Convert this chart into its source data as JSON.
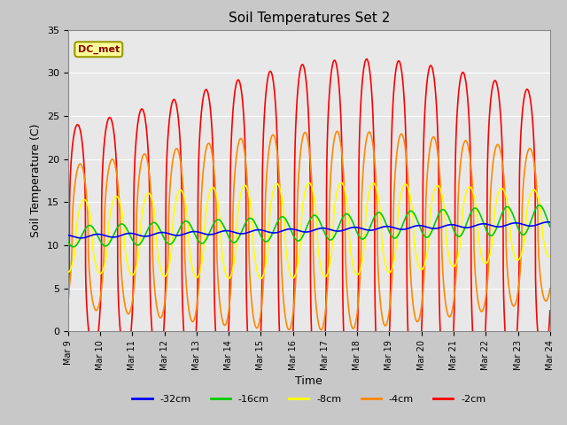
{
  "title": "Soil Temperatures Set 2",
  "xlabel": "Time",
  "ylabel": "Soil Temperature (C)",
  "ylim": [
    0,
    35
  ],
  "xlim": [
    0,
    360
  ],
  "fig_bg": "#c8c8c8",
  "plot_bg": "#e8e8e8",
  "grid_color": "white",
  "annotation_text": "DC_met",
  "annotation_box_color": "#ffff99",
  "annotation_box_edge": "#999900",
  "x_tick_labels": [
    "Mar 9",
    "Mar 10",
    "Mar 11",
    "Mar 12",
    "Mar 13",
    "Mar 14",
    "Mar 15",
    "Mar 16",
    "Mar 17",
    "Mar 18",
    "Mar 19",
    "Mar 20",
    "Mar 21",
    "Mar 22",
    "Mar 23",
    "Mar 24"
  ],
  "x_tick_positions": [
    0,
    24,
    48,
    72,
    96,
    120,
    144,
    168,
    192,
    216,
    240,
    264,
    288,
    312,
    336,
    360
  ],
  "series": {
    "-32cm": {
      "color": "#0000ff",
      "linewidth": 1.2
    },
    "-16cm": {
      "color": "#00cc00",
      "linewidth": 1.2
    },
    "-8cm": {
      "color": "#ffff00",
      "linewidth": 1.2
    },
    "-4cm": {
      "color": "#ff8800",
      "linewidth": 1.2
    },
    "-2cm": {
      "color": "#ff0000",
      "linewidth": 1.2
    }
  },
  "legend_order": [
    "-32cm",
    "-16cm",
    "-8cm",
    "-4cm",
    "-2cm"
  ]
}
